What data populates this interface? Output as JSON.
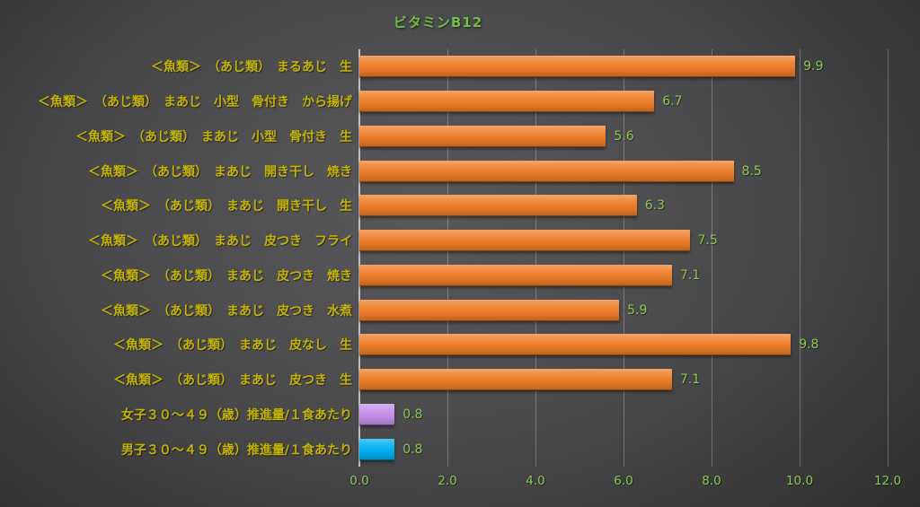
{
  "title_label": "ビタミンB12",
  "colors": {
    "title_text": "#70bf44",
    "category_text": "#c4b400",
    "value_text": "#8cc751",
    "tick_text": "#8cc751",
    "bar_orange": "#ed7d28",
    "bar_purple": "#c490ec",
    "bar_blue": "#00b0f0",
    "axis_line": "#bfbfbf"
  },
  "chart_data": {
    "type": "bar",
    "orientation": "horizontal",
    "title": "ビタミンB12",
    "xlabel": "",
    "ylabel": "",
    "xlim": [
      0,
      12
    ],
    "grid": true,
    "tick_values": [
      0,
      2,
      4,
      6,
      8,
      10,
      12
    ],
    "tick_labels": [
      "0.0",
      "2.0",
      "4.0",
      "6.0",
      "8.0",
      "10.0",
      "12.0"
    ],
    "categories": [
      "＜魚類＞　（あじ類）　まるあじ　生",
      "＜魚類＞　（あじ類）　まあじ　小型　骨付き　から揚げ",
      "＜魚類＞　（あじ類）　まあじ　小型　骨付き　生",
      "＜魚類＞　（あじ類）　まあじ　開き干し　焼き",
      "＜魚類＞　（あじ類）　まあじ　開き干し　生",
      "＜魚類＞　（あじ類）　まあじ　皮つき　フライ",
      "＜魚類＞　（あじ類）　まあじ　皮つき　焼き",
      "＜魚類＞　（あじ類）　まあじ　皮つき　水煮",
      "＜魚類＞　（あじ類）　まあじ　皮なし　生",
      "＜魚類＞　（あじ類）　まあじ　皮つき　生",
      "女子３０～４９（歳）推進量/１食あたり",
      "男子３０～４９（歳）推進量/１食あたり"
    ],
    "values": [
      9.9,
      6.7,
      5.6,
      8.5,
      6.3,
      7.5,
      7.1,
      5.9,
      9.8,
      7.1,
      0.8,
      0.8
    ],
    "value_labels": [
      "9.9",
      "6.7",
      "5.6",
      "8.5",
      "6.3",
      "7.5",
      "7.1",
      "5.9",
      "9.8",
      "7.1",
      "0.8",
      "0.8"
    ],
    "bar_color_keys": [
      "bar_orange",
      "bar_orange",
      "bar_orange",
      "bar_orange",
      "bar_orange",
      "bar_orange",
      "bar_orange",
      "bar_orange",
      "bar_orange",
      "bar_orange",
      "bar_purple",
      "bar_blue"
    ]
  }
}
